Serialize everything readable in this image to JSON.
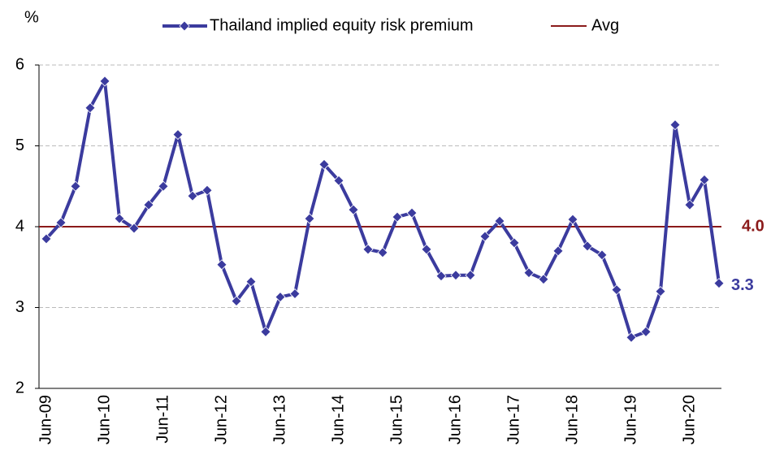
{
  "chart_data": {
    "type": "line",
    "y_axis_label": "%",
    "categories": [
      "Jun-09",
      null,
      null,
      null,
      "Jun-10",
      null,
      null,
      null,
      "Jun-11",
      null,
      null,
      null,
      "Jun-12",
      null,
      null,
      null,
      "Jun-13",
      null,
      null,
      null,
      "Jun-14",
      null,
      null,
      null,
      "Jun-15",
      null,
      null,
      null,
      "Jun-16",
      null,
      null,
      null,
      "Jun-17",
      null,
      null,
      null,
      "Jun-18",
      null,
      null,
      null,
      "Jun-19",
      null,
      null,
      null,
      "Jun-20",
      null,
      null
    ],
    "series": [
      {
        "name": "Thailand implied equity risk premium",
        "color": "#3b3b9e",
        "values": [
          3.85,
          4.05,
          4.5,
          5.47,
          5.8,
          4.1,
          3.98,
          4.27,
          4.5,
          5.14,
          4.38,
          4.45,
          3.53,
          3.08,
          3.32,
          2.7,
          3.13,
          3.17,
          4.1,
          4.77,
          4.57,
          4.21,
          3.72,
          3.68,
          4.12,
          4.17,
          3.72,
          3.39,
          3.4,
          3.4,
          3.88,
          4.07,
          3.8,
          3.43,
          3.35,
          3.7,
          4.09,
          3.76,
          3.65,
          3.22,
          2.63,
          2.7,
          3.2,
          5.26,
          4.27,
          4.58,
          3.3
        ]
      }
    ],
    "average": {
      "name": "Avg",
      "color": "#8b1a1a",
      "value": 4,
      "value_label": "4.0"
    },
    "ylim": [
      2,
      6
    ],
    "yticks": [
      2,
      3,
      4,
      5,
      6
    ],
    "grid": true
  }
}
